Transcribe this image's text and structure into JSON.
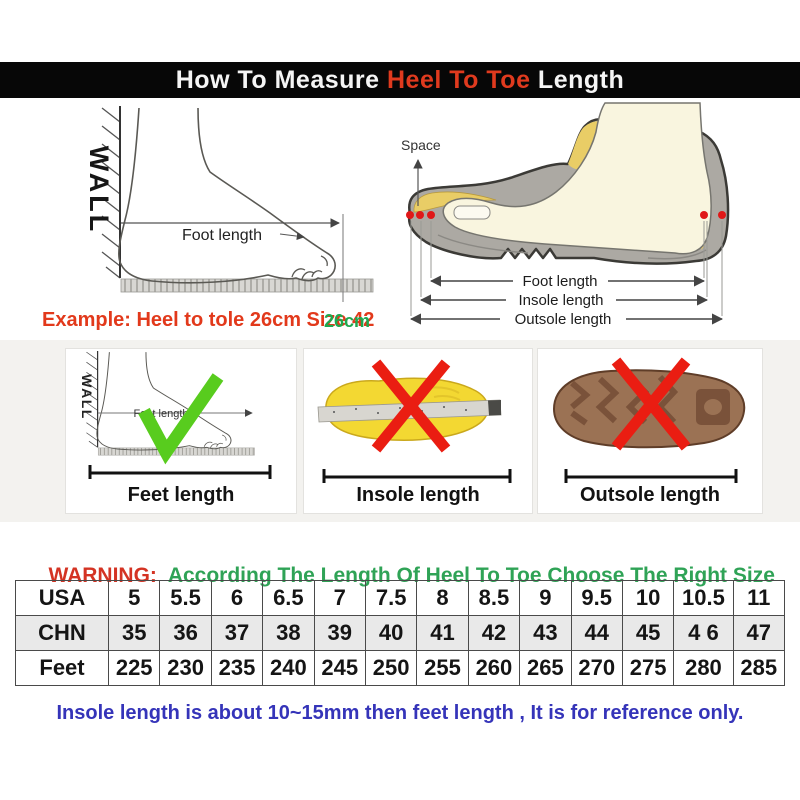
{
  "header": {
    "title_prefix": "How To Measure ",
    "title_highlight": "Heel To Toe",
    "title_suffix": " Length"
  },
  "measure_diagram": {
    "wall_label": "WALL",
    "foot_length_label": "Foot length",
    "example_text": "Example: Heel to tole 26cm Size 42",
    "ruler_value": "26cm"
  },
  "shoe_diagram": {
    "space_label": "Space",
    "foot_length_label": "Foot length",
    "insole_length_label": "Insole length",
    "outsole_length_label": "Outsole length"
  },
  "method_boxes": [
    {
      "label": "Feet length",
      "mark": "check",
      "wall_label": "WALL",
      "foot_length_label": "Foot length"
    },
    {
      "label": "Insole length",
      "mark": "cross"
    },
    {
      "label": "Outsole length",
      "mark": "cross"
    }
  ],
  "warning": {
    "prefix": "WARNING:",
    "text": "  According The Length Of Heel To Toe Choose The Right Size"
  },
  "size_table": {
    "rows": [
      [
        "USA",
        "5",
        "5.5",
        "6",
        "6.5",
        "7",
        "7.5",
        "8",
        "8.5",
        "9",
        "9.5",
        "10",
        "10.5",
        "11"
      ],
      [
        "CHN",
        "35",
        "36",
        "37",
        "38",
        "39",
        "40",
        "41",
        "42",
        "43",
        "44",
        "45",
        "4 6",
        "47"
      ],
      [
        "Feet",
        "225",
        "230",
        "235",
        "240",
        "245",
        "250",
        "255",
        "260",
        "265",
        "270",
        "275",
        "280",
        "285"
      ]
    ]
  },
  "footnote": "Insole length is about 10~15mm then feet length , It is for reference only.",
  "colors": {
    "header_highlight_red": "#e03a1e",
    "example_red": "#e2391b",
    "warning_red": "#d43323",
    "warning_green": "#2fa356",
    "ruler_green": "#1fa84f",
    "footnote_blue": "#3534b9",
    "check_green": "#58cc1e",
    "cross_red": "#ea1d12",
    "insole_yellow": "#f3d832",
    "outsole_brown": "#9b7254",
    "shoe_gray": "#aca9a3",
    "table_alt_row": "#e9e9e9"
  }
}
